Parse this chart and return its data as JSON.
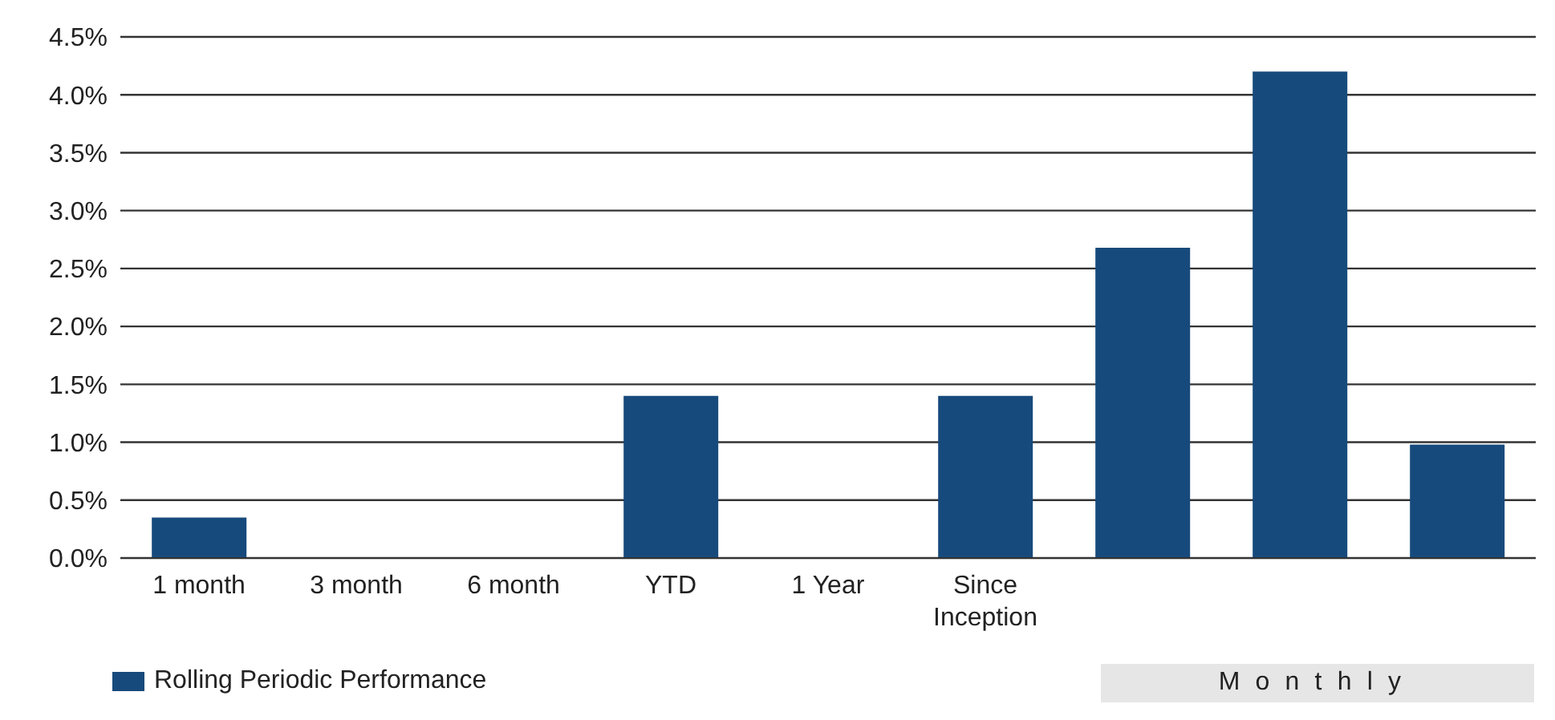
{
  "chart_data": {
    "type": "bar",
    "categories": [
      "1 month",
      "3 month",
      "6 month",
      "YTD",
      "1 Year",
      "Since Inception",
      null,
      null,
      null
    ],
    "series": [
      {
        "name": "Rolling Periodic Performance",
        "color": "#174a7c",
        "values": [
          0.35,
          null,
          null,
          1.4,
          null,
          1.4,
          2.68,
          4.2,
          0.98
        ]
      }
    ],
    "ylim": [
      0,
      4.5
    ],
    "yticks": [
      {
        "value": 0,
        "label": "0.0%"
      },
      {
        "value": 0.5,
        "label": "0.5%"
      },
      {
        "value": 1,
        "label": "1.0%"
      },
      {
        "value": 1.5,
        "label": "1.5%"
      },
      {
        "value": 2,
        "label": "2.0%"
      },
      {
        "value": 2.5,
        "label": "2.5%"
      },
      {
        "value": 3,
        "label": "3.0%"
      },
      {
        "value": 3.5,
        "label": "3.5%"
      },
      {
        "value": 4,
        "label": "4.0%"
      },
      {
        "value": 4.5,
        "label": "4.5%"
      }
    ],
    "grid": "y",
    "legend": "bottom left",
    "annotations": [
      "Monthly"
    ]
  }
}
